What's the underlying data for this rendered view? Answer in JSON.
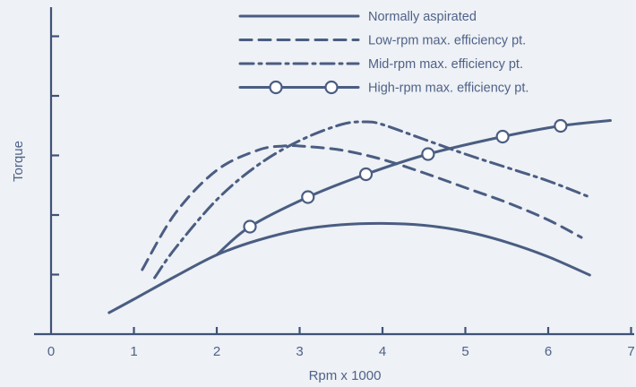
{
  "chart_data": {
    "type": "line",
    "title": "",
    "xlabel": "Rpm x 1000",
    "ylabel": "Torque",
    "xlim": [
      0,
      7
    ],
    "ylim": [
      0,
      10
    ],
    "x_ticks": [
      "0",
      "1",
      "2",
      "3",
      "4",
      "5",
      "6",
      "7"
    ],
    "y_tick_count": 5,
    "grid": false,
    "legend": "top-right",
    "colors": {
      "line": "#4a5d82",
      "axis": "#3f5277",
      "text": "#4f6289",
      "background": "#eef1f5"
    },
    "series": [
      {
        "name": "Normally aspirated",
        "style": "solid",
        "x": [
          0.7,
          1.0,
          1.5,
          2.0,
          2.5,
          3.0,
          3.5,
          4.0,
          4.5,
          5.0,
          5.5,
          6.0,
          6.5
        ],
        "y": [
          0.8,
          1.3,
          2.15,
          2.95,
          3.5,
          3.88,
          4.07,
          4.12,
          4.05,
          3.82,
          3.42,
          2.88,
          2.2
        ]
      },
      {
        "name": "Low-rpm max. efficiency pt.",
        "style": "dashed",
        "x": [
          1.1,
          1.5,
          2.0,
          2.5,
          2.8,
          3.0,
          3.5,
          4.0,
          4.5,
          5.0,
          5.5,
          6.0,
          6.4
        ],
        "y": [
          2.4,
          4.5,
          6.1,
          6.85,
          7.0,
          7.0,
          6.85,
          6.5,
          6.0,
          5.45,
          4.9,
          4.25,
          3.6
        ]
      },
      {
        "name": "Mid-rpm max. efficiency pt.",
        "style": "dash-dot",
        "x": [
          1.25,
          1.5,
          2.0,
          2.5,
          3.0,
          3.5,
          3.8,
          4.0,
          4.5,
          5.0,
          5.5,
          6.0,
          6.5
        ],
        "y": [
          2.1,
          3.2,
          5.0,
          6.3,
          7.2,
          7.8,
          7.9,
          7.8,
          7.25,
          6.7,
          6.2,
          5.7,
          5.1
        ]
      },
      {
        "name": "High-rpm max. efficiency pt.",
        "style": "solid-circles",
        "x": [
          2.0,
          2.4,
          3.1,
          3.8,
          4.55,
          5.45,
          6.15,
          6.75
        ],
        "y": [
          2.95,
          4.0,
          5.1,
          5.95,
          6.7,
          7.35,
          7.75,
          7.95
        ],
        "markers_x": [
          2.4,
          3.1,
          3.8,
          4.55,
          5.45,
          6.15
        ]
      }
    ]
  }
}
